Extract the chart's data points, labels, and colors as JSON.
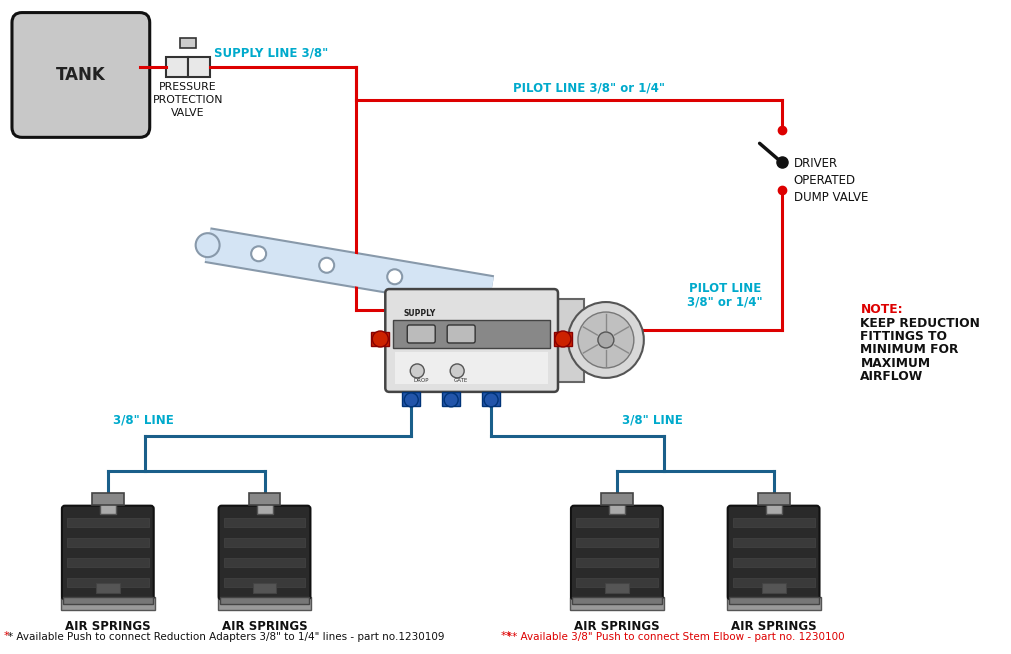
{
  "bg_color": "#ffffff",
  "red_color": "#dd0000",
  "blue_color": "#1a5f8a",
  "cyan_color": "#00aacc",
  "black_color": "#111111",
  "dark_gray": "#333333",
  "mid_gray": "#777777",
  "light_gray": "#bbbbbb",
  "tank_fill": "#c8c8c8",
  "tank_border": "#111111",
  "lever_fill": "#d8e8f4",
  "lever_border": "#8899aa",
  "valve_fill": "#e0e0e0",
  "valve_border": "#555555",
  "valve_dark": "#555555",
  "red_fit": "#cc2200",
  "blue_fit": "#2255aa",
  "note_text": [
    "NOTE:",
    "KEEP REDUCTION",
    "FITTINGS TO",
    "MINIMUM FOR",
    "MAXIMUM",
    "AIRFLOW"
  ],
  "footnote_left": "* Available Push to connect Reduction Adapters 3/8\" to 1/4\" lines - part no.1230109",
  "footnote_right": "** Available 3/8\" Push to connect Stem Elbow - part no. 1230100",
  "supply_label": "SUPPLY LINE 3/8\"",
  "pilot_top_label": "PILOT LINE 3/8\" or 1/4\"",
  "pilot_mid_label_1": "PILOT LINE",
  "pilot_mid_label_2": "3/8\" or 1/4\"",
  "line_38_left": "3/8\" LINE",
  "line_38_right": "3/8\" LINE",
  "ppv_label": [
    "PRESSURE",
    "PROTECTION",
    "VALVE"
  ],
  "dump_label": [
    "DRIVER",
    "OPERATED",
    "DUMP VALVE"
  ],
  "tank_label": "TANK",
  "spring_label": "AIR SPRINGS"
}
